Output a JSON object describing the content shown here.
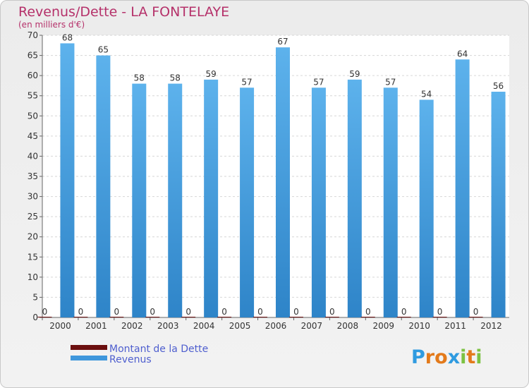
{
  "chart_data": {
    "type": "bar",
    "title": "Revenus/Dette - LA FONTELAYE",
    "subtitle": "(en milliers d'€)",
    "categories": [
      "2000",
      "2001",
      "2002",
      "2003",
      "2004",
      "2005",
      "2006",
      "2007",
      "2008",
      "2009",
      "2010",
      "2011",
      "2012"
    ],
    "series": [
      {
        "name": "Montant de la Dette",
        "color": "#6b0f0f",
        "values": [
          0,
          0,
          0,
          0,
          0,
          0,
          0,
          0,
          0,
          0,
          0,
          0,
          0
        ]
      },
      {
        "name": "Revenus",
        "color": "#3f97dc",
        "values": [
          68,
          65,
          58,
          58,
          59,
          57,
          67,
          57,
          59,
          57,
          54,
          64,
          56
        ]
      }
    ],
    "ylim": [
      0,
      70
    ],
    "yticks": [
      0,
      5,
      10,
      15,
      20,
      25,
      30,
      35,
      40,
      45,
      50,
      55,
      60,
      65,
      70
    ],
    "grid": true,
    "legend_position": "bottom-left"
  },
  "watermark": "Proxiti"
}
